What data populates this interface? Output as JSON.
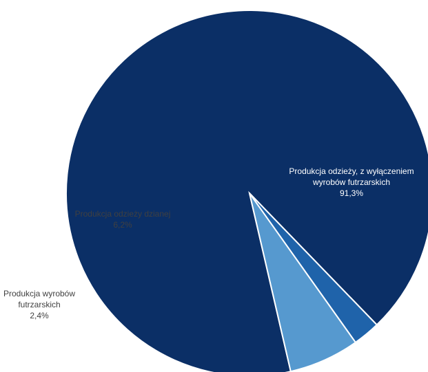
{
  "chart_data": {
    "type": "pie",
    "title": "",
    "slices": [
      {
        "label_lines": [
          "Produkcja odzieży, z wyłączeniem",
          "wyrobów futrzarskich"
        ],
        "value": 91.3,
        "value_label": "91,3%",
        "color": "#0B2F66",
        "label_color": "#ffffff",
        "label_position": "inside"
      },
      {
        "label_lines": [
          "Produkcja wyrobów",
          "futrzarskich"
        ],
        "value": 2.4,
        "value_label": "2,4%",
        "color": "#1F63AA",
        "label_color": "#404040",
        "label_position": "outside-left"
      },
      {
        "label_lines": [
          "Produkcja odzieży dzianej"
        ],
        "value": 6.2,
        "value_label": "6,2%",
        "color": "#5699CF",
        "label_color": "#404040",
        "label_position": "inside"
      }
    ],
    "legend": "none"
  }
}
